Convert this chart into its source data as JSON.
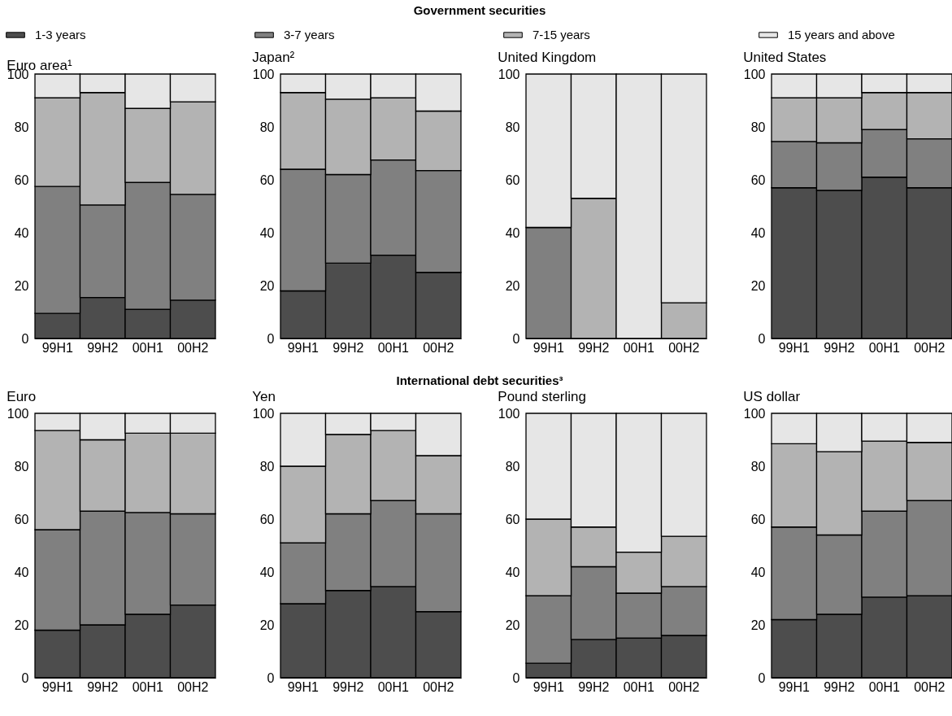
{
  "chart_data": [
    {
      "type": "bar",
      "stacked": true,
      "title": "Euro area¹",
      "annotations": [
        "Government securities"
      ],
      "legend": "top",
      "categories": [
        "99H1",
        "99H2",
        "00H1",
        "00H2"
      ],
      "ylim": [
        0,
        100
      ],
      "yticks": [
        0,
        20,
        40,
        60,
        80,
        100
      ],
      "series": [
        {
          "name": "1-3 years",
          "color": "#4d4d4d",
          "values": [
            9.5,
            15.5,
            11,
            14.5
          ]
        },
        {
          "name": "3-7 years",
          "color": "#808080",
          "values": [
            48,
            35,
            48,
            40
          ]
        },
        {
          "name": "7-15 years",
          "color": "#b3b3b3",
          "values": [
            33.5,
            42.5,
            28,
            35
          ]
        },
        {
          "name": "15 years and above",
          "color": "#e6e6e6",
          "values": [
            9,
            7,
            13,
            10.5
          ]
        }
      ]
    },
    {
      "type": "bar",
      "stacked": true,
      "title": "Japan²",
      "categories": [
        "99H1",
        "99H2",
        "00H1",
        "00H2"
      ],
      "ylim": [
        0,
        100
      ],
      "yticks": [
        0,
        20,
        40,
        60,
        80,
        100
      ],
      "series": [
        {
          "color": "#4d4d4d",
          "values": [
            18,
            28.5,
            31.5,
            25
          ]
        },
        {
          "color": "#808080",
          "values": [
            46,
            33.5,
            36,
            38.5
          ]
        },
        {
          "color": "#b3b3b3",
          "values": [
            29,
            28.5,
            23.5,
            22.5
          ]
        },
        {
          "color": "#e6e6e6",
          "values": [
            7,
            9.5,
            9,
            14
          ]
        }
      ]
    },
    {
      "type": "bar",
      "stacked": true,
      "title": "United Kingdom",
      "categories": [
        "99H1",
        "99H2",
        "00H1",
        "00H2"
      ],
      "ylim": [
        0,
        100
      ],
      "yticks": [
        0,
        20,
        40,
        60,
        80,
        100
      ],
      "series": [
        {
          "color": "#4d4d4d",
          "values": [
            0,
            0,
            0,
            0
          ]
        },
        {
          "color": "#808080",
          "values": [
            42,
            0,
            0,
            0
          ]
        },
        {
          "color": "#b3b3b3",
          "values": [
            0,
            53,
            0,
            13.5
          ]
        },
        {
          "color": "#e6e6e6",
          "values": [
            58,
            47,
            100,
            86.5
          ]
        }
      ]
    },
    {
      "type": "bar",
      "stacked": true,
      "title": "United States",
      "categories": [
        "99H1",
        "99H2",
        "00H1",
        "00H2"
      ],
      "ylim": [
        0,
        100
      ],
      "yticks": [
        0,
        20,
        40,
        60,
        80,
        100
      ],
      "series": [
        {
          "color": "#4d4d4d",
          "values": [
            57,
            56,
            61,
            57
          ]
        },
        {
          "color": "#808080",
          "values": [
            17.5,
            18,
            18,
            18.5
          ]
        },
        {
          "color": "#b3b3b3",
          "values": [
            16.5,
            17,
            14,
            17.5
          ]
        },
        {
          "color": "#e6e6e6",
          "values": [
            9,
            9,
            7,
            7
          ]
        }
      ]
    },
    {
      "type": "bar",
      "stacked": true,
      "title": "Euro",
      "annotations": [
        "International debt securities³"
      ],
      "categories": [
        "99H1",
        "99H2",
        "00H1",
        "00H2"
      ],
      "ylim": [
        0,
        100
      ],
      "yticks": [
        0,
        20,
        40,
        60,
        80,
        100
      ],
      "series": [
        {
          "color": "#4d4d4d",
          "values": [
            18,
            20,
            24,
            27.5
          ]
        },
        {
          "color": "#808080",
          "values": [
            38,
            43,
            38.5,
            34.5
          ]
        },
        {
          "color": "#b3b3b3",
          "values": [
            37.5,
            27,
            30,
            30.5
          ]
        },
        {
          "color": "#e6e6e6",
          "values": [
            6.5,
            10,
            7.5,
            7.5
          ]
        }
      ]
    },
    {
      "type": "bar",
      "stacked": true,
      "title": "Yen",
      "categories": [
        "99H1",
        "99H2",
        "00H1",
        "00H2"
      ],
      "ylim": [
        0,
        100
      ],
      "yticks": [
        0,
        20,
        40,
        60,
        80,
        100
      ],
      "series": [
        {
          "color": "#4d4d4d",
          "values": [
            28,
            33,
            34.5,
            25
          ]
        },
        {
          "color": "#808080",
          "values": [
            23,
            29,
            32.5,
            37
          ]
        },
        {
          "color": "#b3b3b3",
          "values": [
            29,
            30,
            26.5,
            22
          ]
        },
        {
          "color": "#e6e6e6",
          "values": [
            20,
            8,
            6.5,
            16
          ]
        }
      ]
    },
    {
      "type": "bar",
      "stacked": true,
      "title": "Pound sterling",
      "categories": [
        "99H1",
        "99H2",
        "00H1",
        "00H2"
      ],
      "ylim": [
        0,
        100
      ],
      "yticks": [
        0,
        20,
        40,
        60,
        80,
        100
      ],
      "series": [
        {
          "color": "#4d4d4d",
          "values": [
            5.5,
            14.5,
            15,
            16
          ]
        },
        {
          "color": "#808080",
          "values": [
            25.5,
            27.5,
            17,
            18.5
          ]
        },
        {
          "color": "#b3b3b3",
          "values": [
            29,
            15,
            15.5,
            19
          ]
        },
        {
          "color": "#e6e6e6",
          "values": [
            40,
            43,
            52.5,
            46.5
          ]
        }
      ]
    },
    {
      "type": "bar",
      "stacked": true,
      "title": "US dollar",
      "categories": [
        "99H1",
        "99H2",
        "00H1",
        "00H2"
      ],
      "ylim": [
        0,
        100
      ],
      "yticks": [
        0,
        20,
        40,
        60,
        80,
        100
      ],
      "series": [
        {
          "color": "#4d4d4d",
          "values": [
            22,
            24,
            30.5,
            31
          ]
        },
        {
          "color": "#808080",
          "values": [
            35,
            30,
            32.5,
            36
          ]
        },
        {
          "color": "#b3b3b3",
          "values": [
            31.5,
            31.5,
            26.5,
            22
          ]
        },
        {
          "color": "#e6e6e6",
          "values": [
            11.5,
            14.5,
            10.5,
            11
          ]
        }
      ]
    }
  ]
}
